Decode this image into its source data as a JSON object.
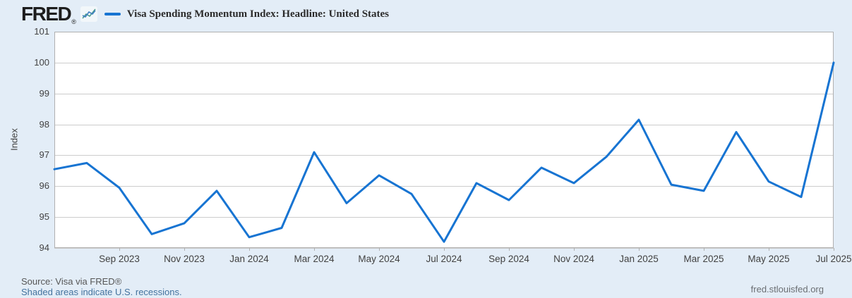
{
  "header": {
    "logo": "FRED",
    "registered": "®",
    "legend_label": "Visa Spending Momentum Index: Headline: United States"
  },
  "footer": {
    "source": "Source: Visa via FRED®",
    "recessions_note": "Shaded areas indicate U.S. recessions.",
    "site": "fred.stlouisfed.org"
  },
  "colors": {
    "line": "#1774d2",
    "background": "#e3edf7",
    "plot_background": "#ffffff",
    "gridline": "#cccccc",
    "plot_border": "#b0b0b0",
    "spark_teal": "#4a9b8e",
    "spark_blue": "#3f7fc1"
  },
  "chart_data": {
    "type": "line",
    "title": "Visa Spending Momentum Index: Headline: United States",
    "xlabel": "",
    "ylabel": "Index",
    "ylim": [
      94,
      101
    ],
    "y_ticks": [
      101,
      100,
      99,
      98,
      97,
      96,
      95,
      94
    ],
    "x_tick_labels": [
      "Sep 2023",
      "Nov 2023",
      "Jan 2024",
      "Mar 2024",
      "May 2024",
      "Jul 2024",
      "Sep 2024",
      "Nov 2024",
      "Jan 2025",
      "Mar 2025",
      "May 2025",
      "Jul 2025"
    ],
    "grid": "horizontal",
    "legend_position": "top",
    "x": [
      "Jul 2023",
      "Aug 2023",
      "Sep 2023",
      "Oct 2023",
      "Nov 2023",
      "Dec 2023",
      "Jan 2024",
      "Feb 2024",
      "Mar 2024",
      "Apr 2024",
      "May 2024",
      "Jun 2024",
      "Jul 2024",
      "Aug 2024",
      "Sep 2024",
      "Oct 2024",
      "Nov 2024",
      "Dec 2024",
      "Jan 2025",
      "Feb 2025",
      "Mar 2025",
      "Apr 2025",
      "May 2025",
      "Jun 2025",
      "Jul 2025"
    ],
    "series": [
      {
        "name": "Visa Spending Momentum Index: Headline: United States",
        "values": [
          96.55,
          96.75,
          95.95,
          94.45,
          94.8,
          95.85,
          94.35,
          94.65,
          97.1,
          95.45,
          96.35,
          95.75,
          94.2,
          96.1,
          95.55,
          96.6,
          96.1,
          96.95,
          98.15,
          96.05,
          95.85,
          97.75,
          96.15,
          95.65,
          100.0
        ]
      }
    ]
  }
}
